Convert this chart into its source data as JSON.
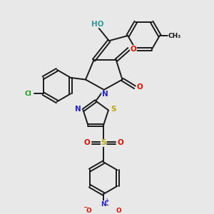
{
  "bg_color": "#e8e8e8",
  "bond_color": "#1a1a1a",
  "bond_lw": 1.4,
  "dbl_off": 0.07,
  "fs": 7.5,
  "fs_small": 6.5,
  "colors": {
    "C": "#111111",
    "O": "#dd1100",
    "N": "#2222dd",
    "S": "#bbaa00",
    "Cl": "#119911",
    "HO": "#339999"
  }
}
